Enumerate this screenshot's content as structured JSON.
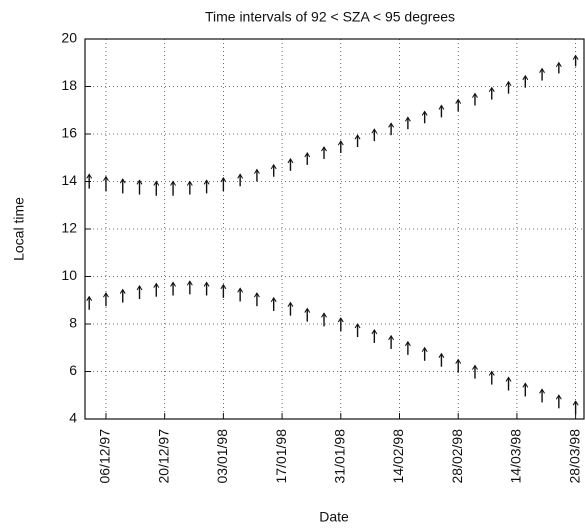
{
  "chart_data": {
    "type": "interval",
    "title": "Time intervals of 92 < SZA < 95 degrees",
    "xlabel": "Date",
    "ylabel": "Local time",
    "x": [
      "02/12/97",
      "06/12/97",
      "10/12/97",
      "14/12/97",
      "18/12/97",
      "22/12/97",
      "26/12/97",
      "30/12/97",
      "03/01/98",
      "07/01/98",
      "11/01/98",
      "15/01/98",
      "19/01/98",
      "23/01/98",
      "27/01/98",
      "31/01/98",
      "04/02/98",
      "08/02/98",
      "12/02/98",
      "16/02/98",
      "20/02/98",
      "24/02/98",
      "28/02/98",
      "04/03/98",
      "08/03/98",
      "12/03/98",
      "16/03/98",
      "20/03/98",
      "24/03/98",
      "28/03/98"
    ],
    "series": [
      {
        "color": "#111111",
        "low": [
          13.7,
          13.6,
          13.5,
          13.45,
          13.4,
          13.4,
          13.45,
          13.5,
          13.6,
          13.8,
          14.0,
          14.2,
          14.45,
          14.7,
          14.95,
          15.2,
          15.45,
          15.7,
          15.95,
          16.2,
          16.45,
          16.7,
          16.95,
          17.2,
          17.45,
          17.7,
          17.95,
          18.25,
          18.55,
          18.85
        ],
        "high": [
          14.3,
          14.2,
          14.1,
          14.05,
          14.0,
          14.0,
          14.0,
          14.05,
          14.15,
          14.3,
          14.5,
          14.7,
          14.95,
          15.2,
          15.45,
          15.7,
          15.95,
          16.2,
          16.45,
          16.7,
          16.95,
          17.2,
          17.45,
          17.7,
          17.95,
          18.2,
          18.45,
          18.75,
          19.0,
          19.3
        ]
      },
      {
        "color": "#111111",
        "low": [
          8.6,
          8.75,
          8.9,
          9.05,
          9.15,
          9.2,
          9.25,
          9.2,
          9.1,
          8.95,
          8.75,
          8.55,
          8.35,
          8.1,
          7.9,
          7.7,
          7.45,
          7.2,
          6.95,
          6.7,
          6.45,
          6.2,
          5.95,
          5.7,
          5.45,
          5.2,
          4.95,
          4.7,
          4.45,
          4.2
        ],
        "high": [
          9.15,
          9.3,
          9.45,
          9.6,
          9.7,
          9.75,
          9.8,
          9.75,
          9.65,
          9.5,
          9.3,
          9.1,
          8.9,
          8.65,
          8.45,
          8.25,
          8.0,
          7.75,
          7.5,
          7.25,
          7.0,
          6.75,
          6.5,
          6.25,
          6.0,
          5.75,
          5.5,
          5.25,
          5.0,
          4.75
        ]
      }
    ],
    "xlim": [
      "01/12/97",
      "30/03/98"
    ],
    "xticks": [
      "06/12/97",
      "20/12/97",
      "03/01/98",
      "17/01/98",
      "31/01/98",
      "14/02/98",
      "28/02/98",
      "14/03/98",
      "28/03/98"
    ],
    "ylim": [
      4,
      20
    ],
    "yticks": [
      4,
      6,
      8,
      10,
      12,
      14,
      16,
      18,
      20
    ],
    "grid": true
  }
}
